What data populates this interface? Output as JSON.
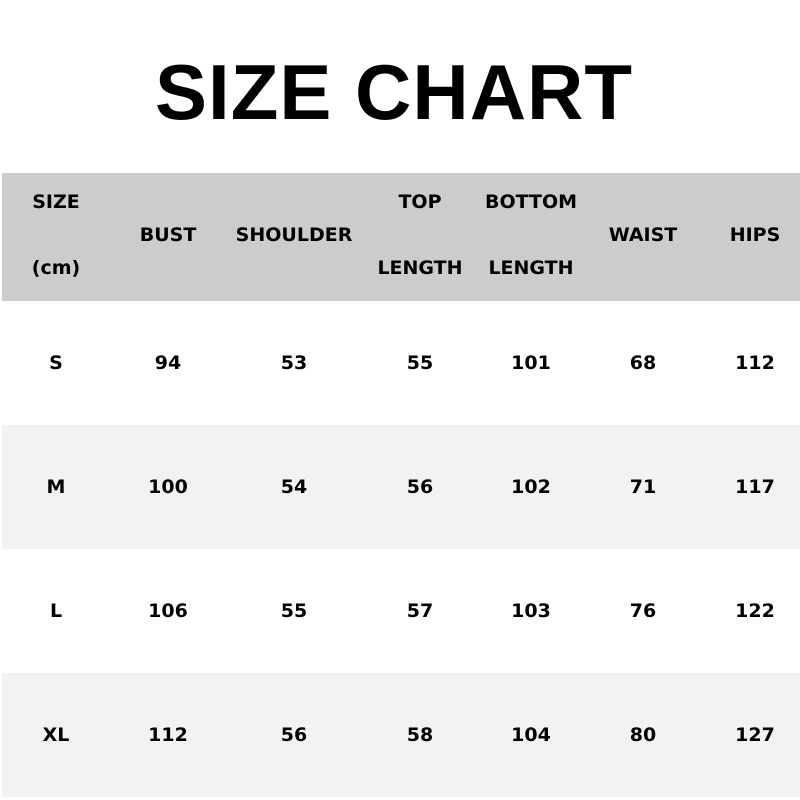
{
  "title": "SIZE CHART",
  "colors": {
    "header_bg": "#cccccc",
    "alt_row_bg": "#f2f2f2",
    "row_bg": "#ffffff"
  },
  "headers": [
    {
      "line1": "SIZE",
      "line2": "(cm)"
    },
    {
      "label": "BUST"
    },
    {
      "label": "SHOULDER"
    },
    {
      "line1": "TOP",
      "line2": "LENGTH"
    },
    {
      "line1": "BOTTOM",
      "line2": "LENGTH"
    },
    {
      "label": "WAIST"
    },
    {
      "label": "HIPS"
    }
  ],
  "rows": [
    [
      "S",
      "94",
      "53",
      "55",
      "101",
      "68",
      "112"
    ],
    [
      "M",
      "100",
      "54",
      "56",
      "102",
      "71",
      "117"
    ],
    [
      "L",
      "106",
      "55",
      "57",
      "103",
      "76",
      "122"
    ],
    [
      "XL",
      "112",
      "56",
      "58",
      "104",
      "80",
      "127"
    ]
  ]
}
